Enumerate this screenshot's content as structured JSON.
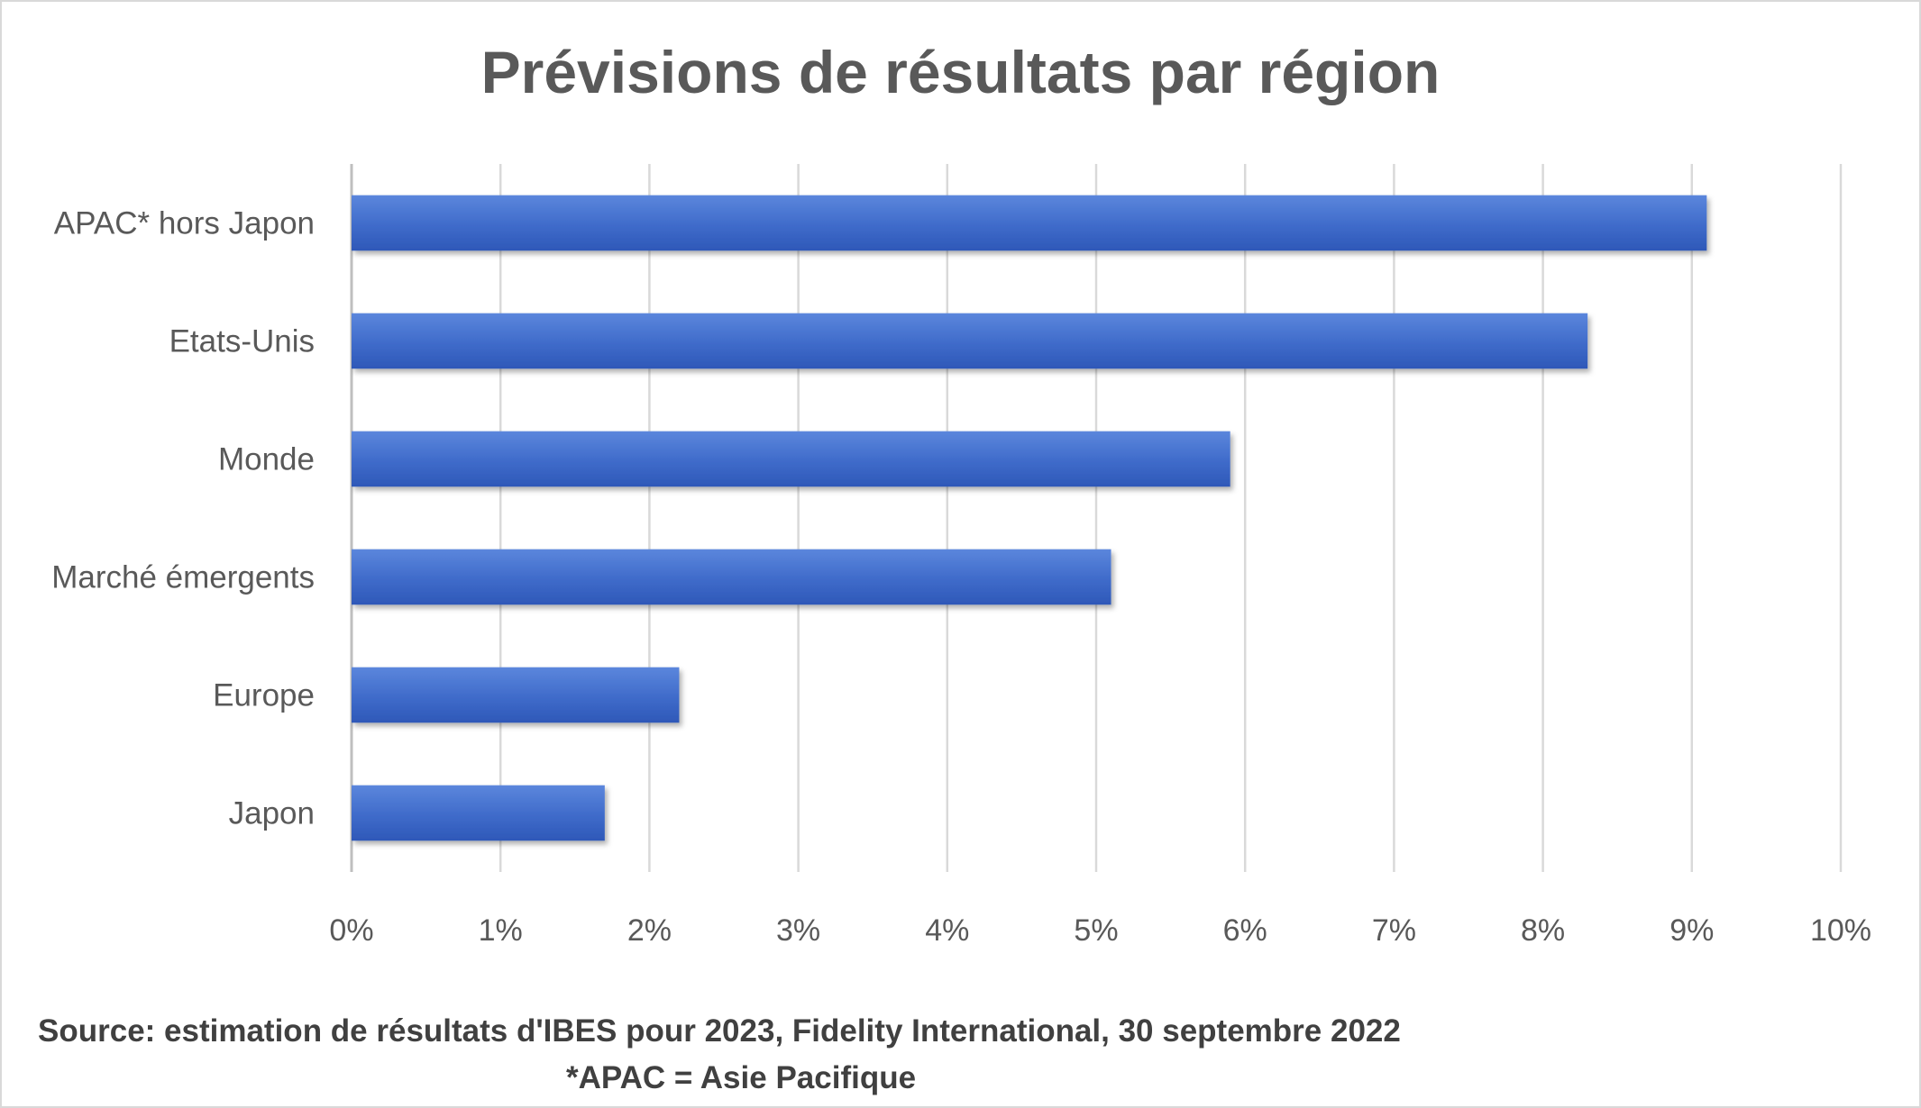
{
  "chart_data": {
    "type": "bar",
    "orientation": "horizontal",
    "title": "Prévisions de résultats par région",
    "categories": [
      "APAC* hors Japon",
      "Etats-Unis",
      "Monde",
      "Marché émergents",
      "Europe",
      "Japon"
    ],
    "values": [
      9.1,
      8.3,
      5.9,
      5.1,
      2.2,
      1.7
    ],
    "unit": "%",
    "xlim": [
      0,
      10
    ],
    "x_ticks": [
      "0%",
      "1%",
      "2%",
      "3%",
      "4%",
      "5%",
      "6%",
      "7%",
      "8%",
      "9%",
      "10%"
    ],
    "grid": "vertical",
    "legend": "none",
    "bar_color": "#3a66c4"
  },
  "footer": {
    "source": "Source: estimation de résultats d'IBES pour 2023, Fidelity International, 30 septembre 2022",
    "note": "*APAC = Asie Pacifique"
  }
}
